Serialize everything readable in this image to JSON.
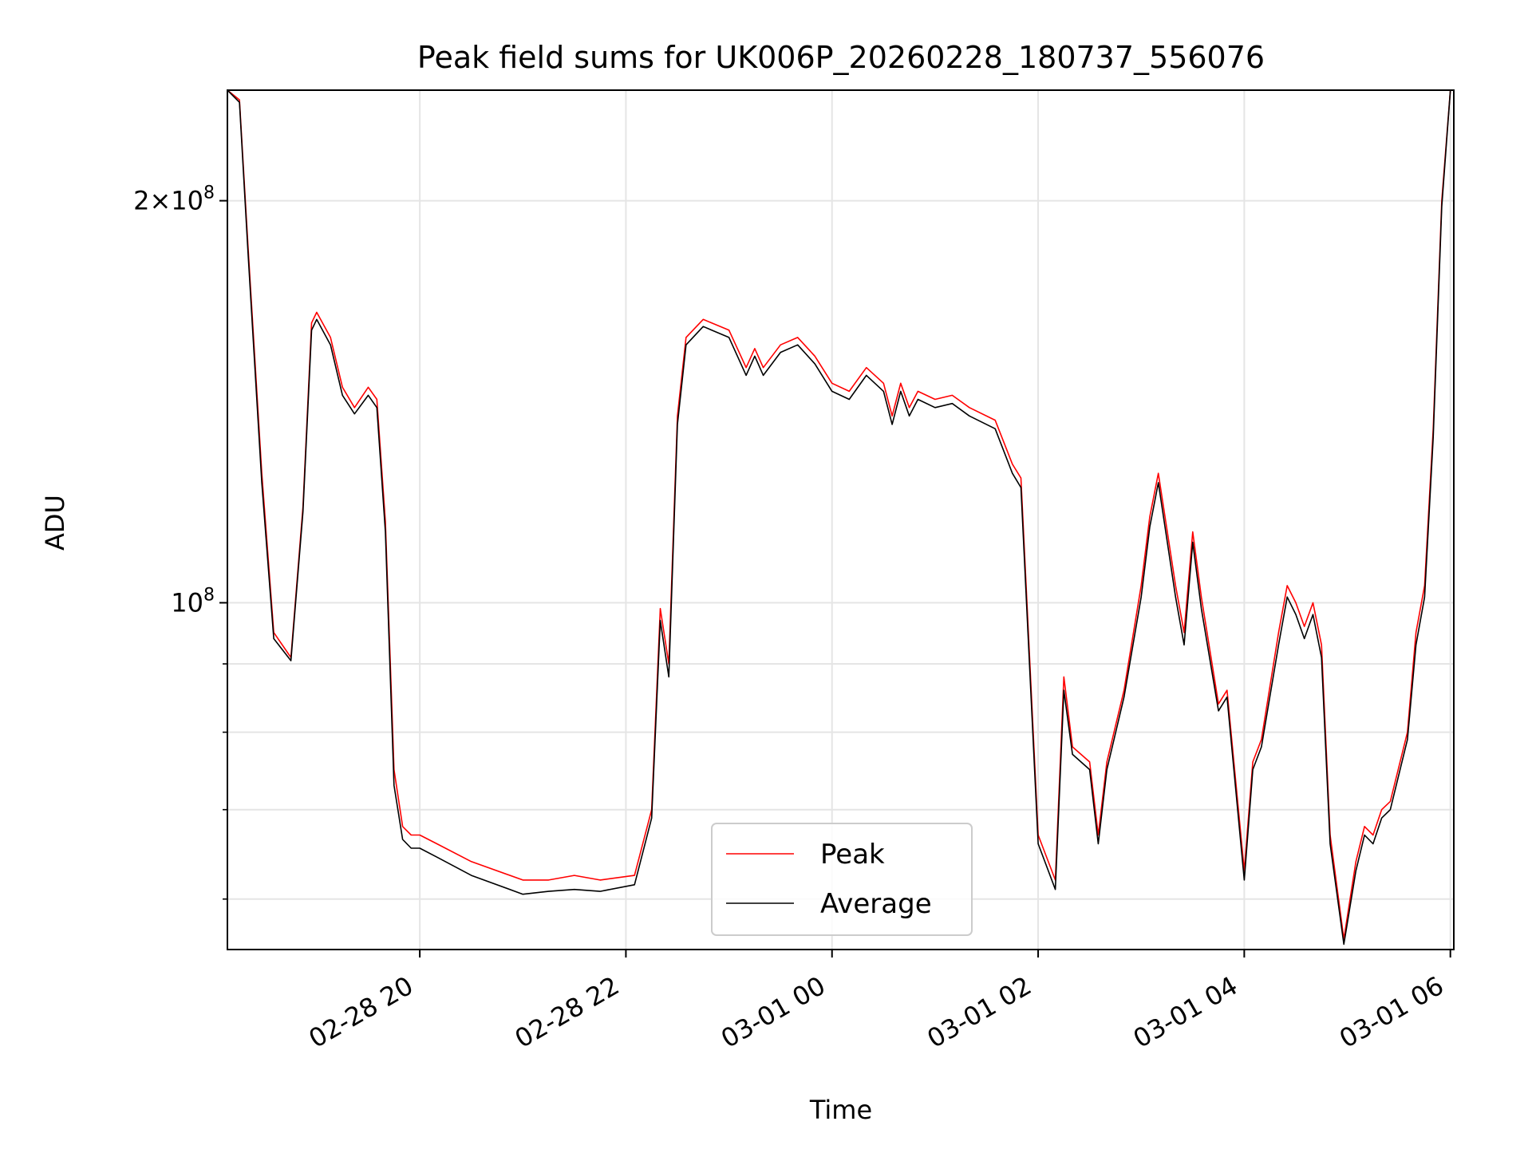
{
  "chart_data": {
    "type": "line",
    "title": "Peak field sums for UK006P_20260228_180737_556076",
    "xlabel": "Time",
    "ylabel": "ADU",
    "y_scale": "log",
    "ylim": [
      55000000,
      242000000
    ],
    "xlim": [
      "02-28 18:08",
      "03-01 06:02"
    ],
    "grid": true,
    "legend_position": "lower-center",
    "x_tick_labels": [
      "02-28 20",
      "02-28 22",
      "03-01 00",
      "03-01 02",
      "03-01 04",
      "03-01 06"
    ],
    "x_tick_times": [
      "02-28 20:00",
      "02-28 22:00",
      "03-01 00:00",
      "03-01 02:00",
      "03-01 04:00",
      "03-01 06:00"
    ],
    "y_major_tick_labels": [
      "2×10^8",
      "10^8"
    ],
    "y_major_tick_values": [
      200000000,
      100000000
    ],
    "y_minor_tick_values": [
      60000000,
      70000000,
      80000000,
      90000000,
      300000000
    ],
    "series": [
      {
        "name": "Peak",
        "color": "#ff0000",
        "x": [
          "02-28 18:08",
          "02-28 18:15",
          "02-28 18:20",
          "02-28 18:28",
          "02-28 18:35",
          "02-28 18:45",
          "02-28 18:52",
          "02-28 18:57",
          "02-28 19:00",
          "02-28 19:08",
          "02-28 19:15",
          "02-28 19:22",
          "02-28 19:30",
          "02-28 19:35",
          "02-28 19:40",
          "02-28 19:45",
          "02-28 19:50",
          "02-28 19:55",
          "02-28 20:00",
          "02-28 20:10",
          "02-28 20:30",
          "02-28 21:00",
          "02-28 21:15",
          "02-28 21:30",
          "02-28 21:45",
          "02-28 22:05",
          "02-28 22:15",
          "02-28 22:20",
          "02-28 22:25",
          "02-28 22:30",
          "02-28 22:35",
          "02-28 22:45",
          "02-28 23:00",
          "02-28 23:10",
          "02-28 23:15",
          "02-28 23:20",
          "02-28 23:30",
          "02-28 23:40",
          "02-28 23:50",
          "03-01 00:00",
          "03-01 00:10",
          "03-01 00:20",
          "03-01 00:30",
          "03-01 00:35",
          "03-01 00:40",
          "03-01 00:45",
          "03-01 00:50",
          "03-01 01:00",
          "03-01 01:10",
          "03-01 01:20",
          "03-01 01:35",
          "03-01 01:45",
          "03-01 01:50",
          "03-01 02:00",
          "03-01 02:10",
          "03-01 02:15",
          "03-01 02:20",
          "03-01 02:30",
          "03-01 02:35",
          "03-01 02:40",
          "03-01 02:50",
          "03-01 03:00",
          "03-01 03:05",
          "03-01 03:10",
          "03-01 03:20",
          "03-01 03:25",
          "03-01 03:30",
          "03-01 03:35",
          "03-01 03:45",
          "03-01 03:50",
          "03-01 04:00",
          "03-01 04:05",
          "03-01 04:10",
          "03-01 04:20",
          "03-01 04:25",
          "03-01 04:30",
          "03-01 04:35",
          "03-01 04:40",
          "03-01 04:45",
          "03-01 04:50",
          "03-01 04:58",
          "03-01 05:05",
          "03-01 05:10",
          "03-01 05:15",
          "03-01 05:20",
          "03-01 05:25",
          "03-01 05:35",
          "03-01 05:40",
          "03-01 05:45",
          "03-01 05:50",
          "03-01 05:55",
          "03-01 06:00",
          "03-01 06:02"
        ],
        "values": [
          242000000,
          238000000,
          185000000,
          125000000,
          95000000,
          91000000,
          118000000,
          162000000,
          165000000,
          158000000,
          145000000,
          140000000,
          145000000,
          142000000,
          115000000,
          75000000,
          68000000,
          67000000,
          67000000,
          66000000,
          64000000,
          62000000,
          62000000,
          62500000,
          62000000,
          62500000,
          70000000,
          99000000,
          90000000,
          138000000,
          158000000,
          163000000,
          160000000,
          150000000,
          155000000,
          150000000,
          156000000,
          158000000,
          153000000,
          146000000,
          144000000,
          150000000,
          146000000,
          138000000,
          146000000,
          140000000,
          144000000,
          142000000,
          143000000,
          140000000,
          137000000,
          127000000,
          124000000,
          67000000,
          62000000,
          88000000,
          78000000,
          76000000,
          67000000,
          76000000,
          86000000,
          103000000,
          116000000,
          125000000,
          103000000,
          95000000,
          113000000,
          101000000,
          84000000,
          86000000,
          63000000,
          76000000,
          79000000,
          95000000,
          103000000,
          100000000,
          96000000,
          100000000,
          93000000,
          67000000,
          56000000,
          64000000,
          68000000,
          67000000,
          70000000,
          71000000,
          80000000,
          95000000,
          103000000,
          135000000,
          200000000,
          242000000,
          242000000
        ]
      },
      {
        "name": "Average",
        "color": "#000000",
        "x": [
          "02-28 18:08",
          "02-28 18:15",
          "02-28 18:20",
          "02-28 18:28",
          "02-28 18:35",
          "02-28 18:45",
          "02-28 18:52",
          "02-28 18:57",
          "02-28 19:00",
          "02-28 19:08",
          "02-28 19:15",
          "02-28 19:22",
          "02-28 19:30",
          "02-28 19:35",
          "02-28 19:40",
          "02-28 19:45",
          "02-28 19:50",
          "02-28 19:55",
          "02-28 20:00",
          "02-28 20:10",
          "02-28 20:30",
          "02-28 21:00",
          "02-28 21:15",
          "02-28 21:30",
          "02-28 21:45",
          "02-28 22:05",
          "02-28 22:15",
          "02-28 22:20",
          "02-28 22:25",
          "02-28 22:30",
          "02-28 22:35",
          "02-28 22:45",
          "02-28 23:00",
          "02-28 23:10",
          "02-28 23:15",
          "02-28 23:20",
          "02-28 23:30",
          "02-28 23:40",
          "02-28 23:50",
          "03-01 00:00",
          "03-01 00:10",
          "03-01 00:20",
          "03-01 00:30",
          "03-01 00:35",
          "03-01 00:40",
          "03-01 00:45",
          "03-01 00:50",
          "03-01 01:00",
          "03-01 01:10",
          "03-01 01:20",
          "03-01 01:35",
          "03-01 01:45",
          "03-01 01:50",
          "03-01 02:00",
          "03-01 02:10",
          "03-01 02:15",
          "03-01 02:20",
          "03-01 02:30",
          "03-01 02:35",
          "03-01 02:40",
          "03-01 02:50",
          "03-01 03:00",
          "03-01 03:05",
          "03-01 03:10",
          "03-01 03:20",
          "03-01 03:25",
          "03-01 03:30",
          "03-01 03:35",
          "03-01 03:45",
          "03-01 03:50",
          "03-01 04:00",
          "03-01 04:05",
          "03-01 04:10",
          "03-01 04:20",
          "03-01 04:25",
          "03-01 04:30",
          "03-01 04:35",
          "03-01 04:40",
          "03-01 04:45",
          "03-01 04:50",
          "03-01 04:58",
          "03-01 05:05",
          "03-01 05:10",
          "03-01 05:15",
          "03-01 05:20",
          "03-01 05:25",
          "03-01 05:35",
          "03-01 05:40",
          "03-01 05:45",
          "03-01 05:50",
          "03-01 05:55",
          "03-01 06:00",
          "03-01 06:02"
        ],
        "values": [
          242000000,
          237000000,
          183000000,
          123000000,
          94000000,
          90500000,
          117000000,
          160000000,
          163000000,
          156000000,
          143000000,
          138500000,
          143000000,
          140000000,
          113000000,
          73000000,
          66500000,
          65500000,
          65500000,
          64500000,
          62500000,
          60500000,
          60800000,
          61000000,
          60800000,
          61500000,
          69000000,
          97000000,
          88000000,
          136000000,
          156000000,
          161000000,
          158000000,
          148000000,
          153000000,
          148000000,
          154000000,
          156000000,
          151000000,
          144000000,
          142000000,
          148000000,
          144000000,
          136000000,
          144000000,
          138000000,
          142000000,
          140000000,
          141000000,
          138000000,
          135000000,
          125000000,
          122000000,
          66000000,
          61000000,
          86000000,
          77000000,
          75000000,
          66000000,
          75000000,
          85000000,
          101000000,
          114000000,
          123000000,
          101000000,
          93000000,
          111000000,
          99000000,
          83000000,
          85000000,
          62000000,
          75000000,
          78000000,
          93000000,
          101000000,
          98000000,
          94000000,
          98000000,
          91000000,
          66000000,
          55500000,
          63000000,
          67000000,
          66000000,
          69000000,
          70000000,
          79000000,
          93000000,
          101000000,
          133000000,
          198000000,
          242000000,
          242000000
        ]
      }
    ]
  }
}
